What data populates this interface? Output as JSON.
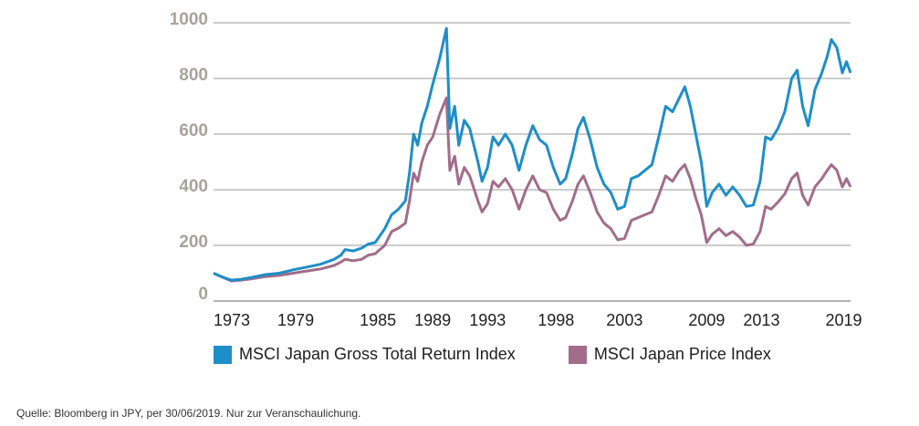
{
  "chart_data": {
    "type": "line",
    "title": "",
    "xlabel": "",
    "ylabel": "",
    "ylim": [
      0,
      1000
    ],
    "xlim": [
      1973.0,
      2019.5
    ],
    "y_ticks": [
      "0",
      "200",
      "400",
      "600",
      "800",
      "1000"
    ],
    "x_tick_labels": [
      "1973",
      "1979",
      "1985",
      "1989",
      "1993",
      "1998",
      "2003",
      "2009",
      "2013",
      "2019"
    ],
    "grid": "horizontal",
    "legend_position": "bottom",
    "series": [
      {
        "name": "MSCI Japan Gross Total Return Index",
        "color": "#1e8ec8",
        "points": [
          [
            1973.0,
            100
          ],
          [
            1973.7,
            85
          ],
          [
            1974.3,
            75
          ],
          [
            1975.0,
            78
          ],
          [
            1975.8,
            85
          ],
          [
            1976.8,
            95
          ],
          [
            1977.8,
            100
          ],
          [
            1978.8,
            112
          ],
          [
            1979.8,
            122
          ],
          [
            1980.8,
            132
          ],
          [
            1981.8,
            150
          ],
          [
            1982.3,
            165
          ],
          [
            1982.6,
            185
          ],
          [
            1983.2,
            180
          ],
          [
            1983.8,
            190
          ],
          [
            1984.3,
            205
          ],
          [
            1984.8,
            210
          ],
          [
            1985.5,
            260
          ],
          [
            1986.0,
            310
          ],
          [
            1986.5,
            330
          ],
          [
            1987.0,
            360
          ],
          [
            1987.3,
            460
          ],
          [
            1987.6,
            600
          ],
          [
            1987.9,
            560
          ],
          [
            1988.2,
            640
          ],
          [
            1988.6,
            700
          ],
          [
            1989.0,
            780
          ],
          [
            1989.5,
            870
          ],
          [
            1990.0,
            980
          ],
          [
            1990.25,
            620
          ],
          [
            1990.6,
            700
          ],
          [
            1990.9,
            560
          ],
          [
            1991.3,
            650
          ],
          [
            1991.7,
            620
          ],
          [
            1992.3,
            500
          ],
          [
            1992.6,
            430
          ],
          [
            1993.0,
            480
          ],
          [
            1993.4,
            590
          ],
          [
            1993.8,
            560
          ],
          [
            1994.3,
            600
          ],
          [
            1994.8,
            560
          ],
          [
            1995.3,
            470
          ],
          [
            1995.8,
            560
          ],
          [
            1996.3,
            630
          ],
          [
            1996.8,
            580
          ],
          [
            1997.3,
            560
          ],
          [
            1997.8,
            480
          ],
          [
            1998.3,
            420
          ],
          [
            1998.7,
            440
          ],
          [
            1999.2,
            530
          ],
          [
            1999.6,
            620
          ],
          [
            2000.0,
            660
          ],
          [
            2000.5,
            580
          ],
          [
            2001.0,
            480
          ],
          [
            2001.5,
            420
          ],
          [
            2002.0,
            390
          ],
          [
            2002.5,
            330
          ],
          [
            2003.0,
            340
          ],
          [
            2003.5,
            440
          ],
          [
            2004.0,
            450
          ],
          [
            2004.5,
            470
          ],
          [
            2005.0,
            490
          ],
          [
            2005.5,
            590
          ],
          [
            2006.0,
            700
          ],
          [
            2006.5,
            680
          ],
          [
            2007.0,
            730
          ],
          [
            2007.4,
            770
          ],
          [
            2007.8,
            700
          ],
          [
            2008.2,
            600
          ],
          [
            2008.6,
            500
          ],
          [
            2009.0,
            340
          ],
          [
            2009.4,
            390
          ],
          [
            2009.9,
            420
          ],
          [
            2010.4,
            380
          ],
          [
            2010.9,
            410
          ],
          [
            2011.4,
            380
          ],
          [
            2011.9,
            340
          ],
          [
            2012.4,
            345
          ],
          [
            2012.9,
            430
          ],
          [
            2013.3,
            590
          ],
          [
            2013.7,
            580
          ],
          [
            2014.2,
            620
          ],
          [
            2014.7,
            680
          ],
          [
            2015.2,
            800
          ],
          [
            2015.6,
            830
          ],
          [
            2016.0,
            700
          ],
          [
            2016.4,
            630
          ],
          [
            2016.9,
            760
          ],
          [
            2017.4,
            820
          ],
          [
            2017.8,
            880
          ],
          [
            2018.1,
            940
          ],
          [
            2018.5,
            910
          ],
          [
            2018.9,
            820
          ],
          [
            2019.2,
            860
          ],
          [
            2019.5,
            820
          ]
        ]
      },
      {
        "name": "MSCI Japan Price Index",
        "color": "#a26d8a",
        "points": [
          [
            1973.0,
            100
          ],
          [
            1973.7,
            85
          ],
          [
            1974.3,
            72
          ],
          [
            1975.0,
            75
          ],
          [
            1975.8,
            80
          ],
          [
            1976.8,
            88
          ],
          [
            1977.8,
            92
          ],
          [
            1978.8,
            100
          ],
          [
            1979.8,
            108
          ],
          [
            1980.8,
            115
          ],
          [
            1981.8,
            128
          ],
          [
            1982.3,
            140
          ],
          [
            1982.6,
            150
          ],
          [
            1983.2,
            145
          ],
          [
            1983.8,
            150
          ],
          [
            1984.3,
            165
          ],
          [
            1984.8,
            170
          ],
          [
            1985.5,
            200
          ],
          [
            1986.0,
            250
          ],
          [
            1986.5,
            262
          ],
          [
            1987.0,
            280
          ],
          [
            1987.3,
            360
          ],
          [
            1987.6,
            460
          ],
          [
            1987.9,
            430
          ],
          [
            1988.2,
            500
          ],
          [
            1988.6,
            560
          ],
          [
            1989.0,
            590
          ],
          [
            1989.5,
            670
          ],
          [
            1990.0,
            730
          ],
          [
            1990.25,
            470
          ],
          [
            1990.6,
            520
          ],
          [
            1990.9,
            420
          ],
          [
            1991.3,
            480
          ],
          [
            1991.7,
            450
          ],
          [
            1992.3,
            360
          ],
          [
            1992.6,
            320
          ],
          [
            1993.0,
            350
          ],
          [
            1993.4,
            430
          ],
          [
            1993.8,
            410
          ],
          [
            1994.3,
            440
          ],
          [
            1994.8,
            400
          ],
          [
            1995.3,
            330
          ],
          [
            1995.8,
            400
          ],
          [
            1996.3,
            450
          ],
          [
            1996.8,
            400
          ],
          [
            1997.3,
            390
          ],
          [
            1997.8,
            330
          ],
          [
            1998.3,
            290
          ],
          [
            1998.7,
            300
          ],
          [
            1999.2,
            360
          ],
          [
            1999.6,
            420
          ],
          [
            2000.0,
            450
          ],
          [
            2000.5,
            390
          ],
          [
            2001.0,
            320
          ],
          [
            2001.5,
            280
          ],
          [
            2002.0,
            260
          ],
          [
            2002.5,
            220
          ],
          [
            2003.0,
            225
          ],
          [
            2003.5,
            290
          ],
          [
            2004.0,
            300
          ],
          [
            2004.5,
            310
          ],
          [
            2005.0,
            320
          ],
          [
            2005.5,
            380
          ],
          [
            2006.0,
            450
          ],
          [
            2006.5,
            430
          ],
          [
            2007.0,
            470
          ],
          [
            2007.4,
            490
          ],
          [
            2007.8,
            440
          ],
          [
            2008.2,
            370
          ],
          [
            2008.6,
            310
          ],
          [
            2009.0,
            210
          ],
          [
            2009.4,
            240
          ],
          [
            2009.9,
            260
          ],
          [
            2010.4,
            235
          ],
          [
            2010.9,
            250
          ],
          [
            2011.4,
            230
          ],
          [
            2011.9,
            200
          ],
          [
            2012.4,
            205
          ],
          [
            2012.9,
            250
          ],
          [
            2013.3,
            340
          ],
          [
            2013.7,
            330
          ],
          [
            2014.2,
            355
          ],
          [
            2014.7,
            385
          ],
          [
            2015.2,
            440
          ],
          [
            2015.6,
            460
          ],
          [
            2016.0,
            380
          ],
          [
            2016.4,
            345
          ],
          [
            2016.9,
            410
          ],
          [
            2017.4,
            440
          ],
          [
            2017.8,
            470
          ],
          [
            2018.1,
            490
          ],
          [
            2018.5,
            470
          ],
          [
            2018.9,
            410
          ],
          [
            2019.2,
            440
          ],
          [
            2019.5,
            410
          ]
        ]
      }
    ]
  },
  "legend": {
    "items": [
      {
        "label": "MSCI Japan Gross Total Return Index",
        "color": "#1e8ec8"
      },
      {
        "label": "MSCI Japan Price Index",
        "color": "#a26d8a"
      }
    ]
  },
  "source_note": "Quelle: Bloomberg in JPY, per 30/06/2019. Nur zur Veranschaulichung."
}
